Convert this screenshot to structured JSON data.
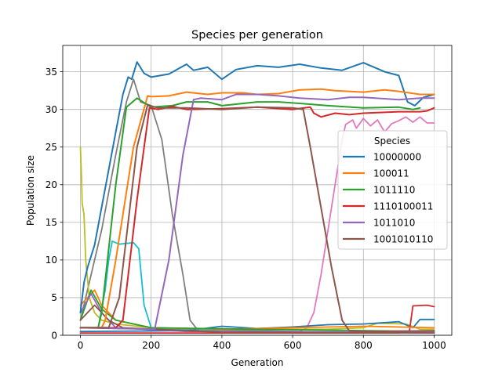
{
  "chart_data": {
    "type": "line",
    "title": "Species per generation",
    "xlabel": "Generation",
    "ylabel": "Population size",
    "xlim": [
      -50,
      1050
    ],
    "ylim": [
      0,
      38.5
    ],
    "xticks": [
      0,
      200,
      400,
      600,
      800,
      1000
    ],
    "yticks": [
      0,
      5,
      10,
      15,
      20,
      25,
      30,
      35
    ],
    "grid": true,
    "legend": {
      "title": "Species",
      "placement": "right"
    },
    "series": [
      {
        "name": "10000000",
        "color": "#1f77b4",
        "legend": true,
        "points": [
          [
            0,
            3
          ],
          [
            10,
            7
          ],
          [
            20,
            9
          ],
          [
            40,
            12
          ],
          [
            60,
            17
          ],
          [
            80,
            22
          ],
          [
            100,
            27
          ],
          [
            120,
            32
          ],
          [
            135,
            34.3
          ],
          [
            145,
            34
          ],
          [
            160,
            36.3
          ],
          [
            180,
            34.8
          ],
          [
            200,
            34.3
          ],
          [
            250,
            34.7
          ],
          [
            300,
            36
          ],
          [
            320,
            35.2
          ],
          [
            360,
            35.6
          ],
          [
            400,
            34
          ],
          [
            440,
            35.3
          ],
          [
            500,
            35.8
          ],
          [
            560,
            35.6
          ],
          [
            620,
            36
          ],
          [
            680,
            35.5
          ],
          [
            740,
            35.2
          ],
          [
            800,
            36.2
          ],
          [
            860,
            35
          ],
          [
            900,
            34.5
          ],
          [
            925,
            31
          ],
          [
            945,
            30.5
          ],
          [
            970,
            31.6
          ],
          [
            1000,
            32
          ]
        ]
      },
      {
        "name": "100011",
        "color": "#ff7f0e",
        "legend": true,
        "points": [
          [
            0,
            1
          ],
          [
            60,
            1
          ],
          [
            70,
            2
          ],
          [
            100,
            10
          ],
          [
            150,
            25
          ],
          [
            190,
            31.8
          ],
          [
            200,
            31.7
          ],
          [
            250,
            31.8
          ],
          [
            300,
            32.3
          ],
          [
            360,
            32
          ],
          [
            400,
            32.2
          ],
          [
            460,
            32.2
          ],
          [
            500,
            32
          ],
          [
            560,
            32.1
          ],
          [
            620,
            32.6
          ],
          [
            680,
            32.7
          ],
          [
            720,
            32.5
          ],
          [
            800,
            32.3
          ],
          [
            860,
            32.6
          ],
          [
            900,
            32.4
          ],
          [
            960,
            32
          ],
          [
            1000,
            32
          ]
        ]
      },
      {
        "name": "1011110",
        "color": "#2ca02c",
        "legend": true,
        "points": [
          [
            0,
            1
          ],
          [
            50,
            1
          ],
          [
            60,
            3
          ],
          [
            100,
            20
          ],
          [
            130,
            30.3
          ],
          [
            160,
            31.5
          ],
          [
            200,
            30.3
          ],
          [
            260,
            30.5
          ],
          [
            300,
            31
          ],
          [
            360,
            31
          ],
          [
            400,
            30.5
          ],
          [
            500,
            31
          ],
          [
            560,
            31
          ],
          [
            620,
            30.8
          ],
          [
            700,
            30.5
          ],
          [
            800,
            30.2
          ],
          [
            900,
            30.3
          ],
          [
            940,
            30
          ],
          [
            960,
            30.2
          ]
        ]
      },
      {
        "name": "1110100011",
        "color": "#d62728",
        "legend": true,
        "points": [
          [
            0,
            1
          ],
          [
            100,
            1
          ],
          [
            120,
            2
          ],
          [
            160,
            18
          ],
          [
            195,
            30.2
          ],
          [
            220,
            30
          ],
          [
            260,
            30.4
          ],
          [
            300,
            30
          ],
          [
            400,
            30.1
          ],
          [
            500,
            30.3
          ],
          [
            600,
            30
          ],
          [
            650,
            30.3
          ],
          [
            660,
            29.5
          ],
          [
            680,
            29
          ],
          [
            720,
            29.5
          ],
          [
            760,
            29.3
          ],
          [
            800,
            29.5
          ],
          [
            900,
            29.7
          ],
          [
            960,
            29.7
          ],
          [
            980,
            29.8
          ],
          [
            1000,
            30.2
          ]
        ]
      },
      {
        "name": "1011010",
        "color": "#9467bd",
        "legend": true,
        "points": [
          [
            0,
            1
          ],
          [
            210,
            0.8
          ],
          [
            250,
            10
          ],
          [
            290,
            24
          ],
          [
            320,
            31.3
          ],
          [
            340,
            31.5
          ],
          [
            400,
            31.3
          ],
          [
            440,
            32
          ],
          [
            500,
            32
          ],
          [
            560,
            31.8
          ],
          [
            620,
            31.5
          ],
          [
            700,
            31.3
          ],
          [
            760,
            31.6
          ],
          [
            800,
            31.6
          ],
          [
            900,
            31.3
          ],
          [
            960,
            31.5
          ],
          [
            1000,
            31.5
          ]
        ]
      },
      {
        "name": "1001010110",
        "color": "#8c564b",
        "legend": true,
        "points": [
          [
            0,
            1
          ],
          [
            80,
            1
          ],
          [
            110,
            5
          ],
          [
            160,
            25
          ],
          [
            190,
            30.6
          ],
          [
            220,
            30.2
          ],
          [
            300,
            30.2
          ],
          [
            400,
            30
          ],
          [
            500,
            30.3
          ],
          [
            600,
            30.2
          ],
          [
            630,
            30
          ],
          [
            650,
            25
          ],
          [
            680,
            17
          ],
          [
            710,
            9
          ],
          [
            740,
            2
          ],
          [
            760,
            0.6
          ],
          [
            800,
            0.5
          ],
          [
            1000,
            0.6
          ]
        ]
      },
      {
        "color": "#e377c2",
        "points": [
          [
            0,
            1
          ],
          [
            620,
            0.5
          ],
          [
            640,
            1
          ],
          [
            660,
            3
          ],
          [
            680,
            8
          ],
          [
            700,
            14
          ],
          [
            720,
            20
          ],
          [
            740,
            26
          ],
          [
            750,
            28
          ],
          [
            770,
            28.6
          ],
          [
            780,
            27.5
          ],
          [
            800,
            28.8
          ],
          [
            820,
            27.8
          ],
          [
            840,
            28.6
          ],
          [
            860,
            27
          ],
          [
            880,
            28.1
          ],
          [
            900,
            28.5
          ],
          [
            920,
            29
          ],
          [
            940,
            28.3
          ],
          [
            960,
            29
          ],
          [
            980,
            28.2
          ],
          [
            1000,
            28.2
          ]
        ]
      },
      {
        "color": "#7f7f7f",
        "points": [
          [
            0,
            2
          ],
          [
            60,
            14
          ],
          [
            100,
            24
          ],
          [
            130,
            31
          ],
          [
            150,
            34
          ],
          [
            170,
            31
          ],
          [
            200,
            30.5
          ],
          [
            230,
            26
          ],
          [
            260,
            16
          ],
          [
            290,
            8
          ],
          [
            310,
            2
          ],
          [
            330,
            0.8
          ],
          [
            600,
            0.5
          ],
          [
            1000,
            0.3
          ]
        ]
      },
      {
        "color": "#bcbd22",
        "points": [
          [
            0,
            25
          ],
          [
            3,
            21
          ],
          [
            5,
            17.5
          ],
          [
            10,
            16
          ],
          [
            15,
            10
          ],
          [
            25,
            5
          ],
          [
            40,
            3
          ],
          [
            60,
            2
          ],
          [
            100,
            1.5
          ],
          [
            200,
            1
          ],
          [
            400,
            0.8
          ],
          [
            700,
            0.8
          ],
          [
            800,
            1
          ],
          [
            840,
            1.6
          ],
          [
            920,
            1.5
          ],
          [
            960,
            0.8
          ],
          [
            1000,
            0.8
          ]
        ]
      },
      {
        "color": "#17becf",
        "points": [
          [
            0,
            1
          ],
          [
            50,
            1
          ],
          [
            70,
            6
          ],
          [
            80,
            10
          ],
          [
            90,
            12.5
          ],
          [
            110,
            12.1
          ],
          [
            150,
            12.3
          ],
          [
            165,
            11.5
          ],
          [
            180,
            4
          ],
          [
            200,
            1
          ],
          [
            400,
            0.5
          ],
          [
            1000,
            0.4
          ]
        ]
      },
      {
        "color": "#1f77b4",
        "points": [
          [
            0,
            0.5
          ],
          [
            300,
            0.6
          ],
          [
            400,
            1.2
          ],
          [
            500,
            0.9
          ],
          [
            600,
            1.1
          ],
          [
            700,
            1.4
          ],
          [
            800,
            1.5
          ],
          [
            900,
            1.8
          ],
          [
            940,
            1
          ],
          [
            960,
            2.1
          ],
          [
            1000,
            2.1
          ]
        ]
      },
      {
        "color": "#d62728",
        "points": [
          [
            0,
            0.3
          ],
          [
            900,
            0.3
          ],
          [
            930,
            0.5
          ],
          [
            940,
            3.9
          ],
          [
            980,
            4
          ],
          [
            1000,
            3.8
          ]
        ]
      },
      {
        "color": "#ff7f0e",
        "points": [
          [
            0,
            4
          ],
          [
            20,
            5
          ],
          [
            40,
            6
          ],
          [
            60,
            4
          ],
          [
            100,
            2
          ],
          [
            200,
            1
          ],
          [
            400,
            0.8
          ],
          [
            800,
            1.2
          ],
          [
            1000,
            1
          ]
        ]
      },
      {
        "color": "#2ca02c",
        "points": [
          [
            0,
            2
          ],
          [
            30,
            6
          ],
          [
            60,
            3.5
          ],
          [
            100,
            2
          ],
          [
            200,
            1
          ],
          [
            500,
            0.8
          ],
          [
            1000,
            0.5
          ]
        ]
      },
      {
        "color": "#9467bd",
        "points": [
          [
            0,
            3
          ],
          [
            30,
            5.5
          ],
          [
            60,
            3
          ],
          [
            100,
            1
          ],
          [
            300,
            0.5
          ],
          [
            1000,
            0.4
          ]
        ]
      },
      {
        "color": "#8c564b",
        "points": [
          [
            0,
            2
          ],
          [
            40,
            4
          ],
          [
            80,
            2
          ],
          [
            120,
            1
          ],
          [
            400,
            0.4
          ],
          [
            1000,
            0.3
          ]
        ]
      }
    ]
  }
}
